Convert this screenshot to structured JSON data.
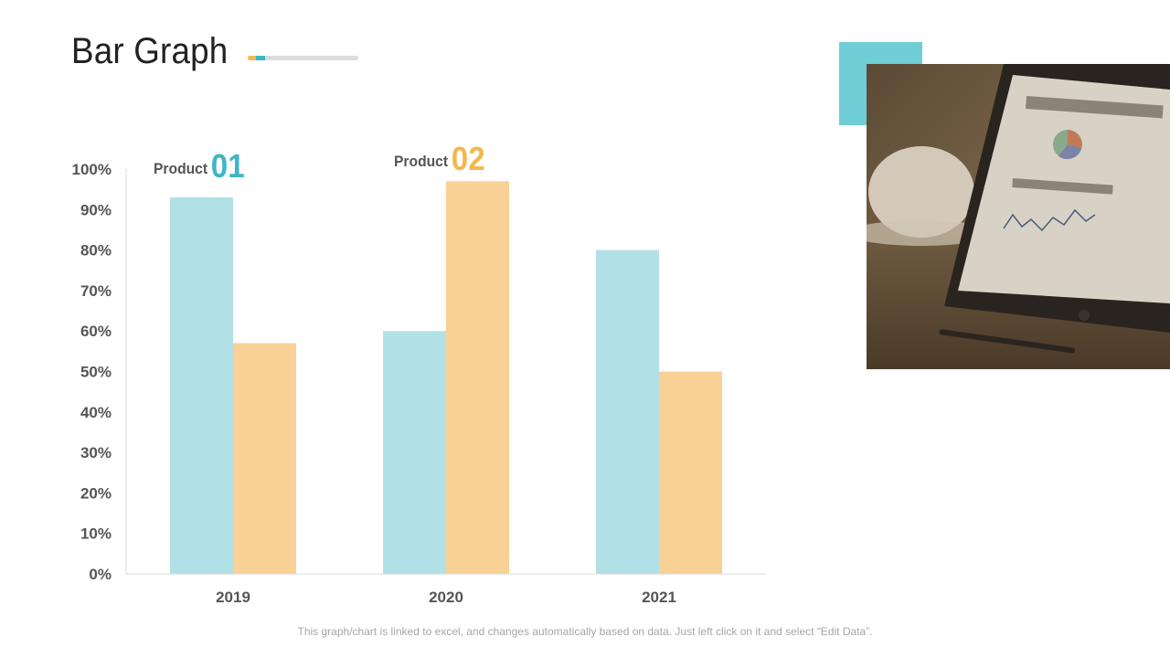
{
  "header": {
    "title": "Bar Graph"
  },
  "colors": {
    "product_01": "#b1e1e6",
    "product_02": "#f9d096",
    "product_01_label": "#3fb6c4",
    "product_02_label": "#f2b84b",
    "axis": "#dddddd"
  },
  "legend": {
    "product_01": {
      "word": "Product",
      "num": "01"
    },
    "product_02": {
      "word": "Product",
      "num": "02"
    }
  },
  "chart_data": {
    "type": "bar",
    "categories": [
      "2019",
      "2020",
      "2021"
    ],
    "series": [
      {
        "name": "Product 01",
        "values": [
          93,
          60,
          80
        ]
      },
      {
        "name": "Product 02",
        "values": [
          57,
          97,
          50
        ]
      }
    ],
    "yticks": [
      "0%",
      "10%",
      "20%",
      "30%",
      "40%",
      "50%",
      "60%",
      "70%",
      "80%",
      "90%",
      "100%"
    ],
    "ylim": [
      0,
      100
    ],
    "grid": false,
    "legend_placement": "top, above bars"
  },
  "footnote": "This graph/chart is linked to excel, and changes automatically based on data. Just left click on it and select “Edit Data”."
}
